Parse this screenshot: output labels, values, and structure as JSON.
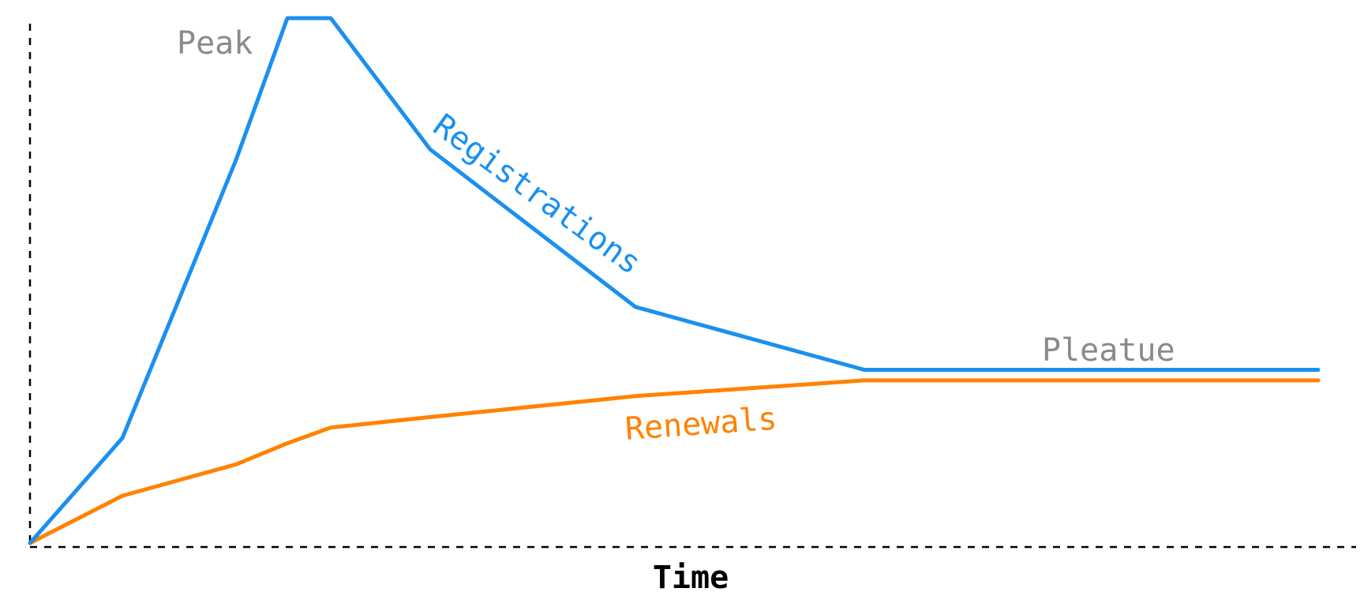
{
  "chart_data": {
    "type": "line",
    "xlabel": "Time",
    "ylabel": "",
    "x": [
      0,
      1,
      2,
      3,
      4,
      5,
      6,
      7,
      8,
      9
    ],
    "series": [
      {
        "name": "Registrations",
        "color": "#1a90f0",
        "values": [
          0,
          20,
          73,
          100,
          100,
          75,
          45,
          33,
          33,
          33
        ]
      },
      {
        "name": "Renewals",
        "color": "#ff8200",
        "values": [
          0,
          9,
          15,
          19,
          22,
          24,
          28,
          31,
          31,
          31
        ]
      }
    ],
    "annotations": [
      {
        "text": "Peak",
        "color": "#8a8a8a"
      },
      {
        "text": "Pleatue",
        "color": "#8a8a8a"
      }
    ],
    "ylim": [
      0,
      100
    ],
    "grid": false,
    "legend": "inline labels"
  }
}
